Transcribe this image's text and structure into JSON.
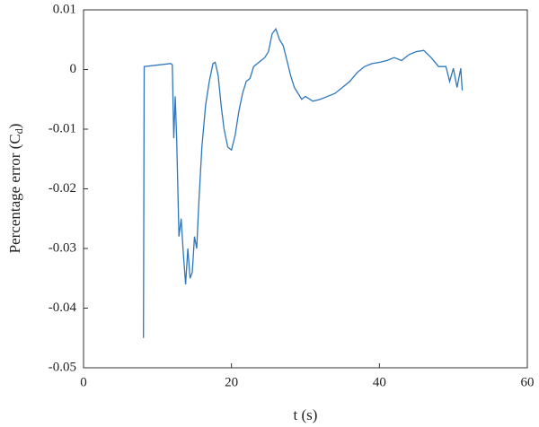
{
  "chart_data": {
    "type": "line",
    "xlabel": "t (s)",
    "ylabel": {
      "text": "Percentage error (C",
      "sub": "d",
      "end": ")"
    },
    "x": [
      8.1,
      8.2,
      11.8,
      12.0,
      12.2,
      12.4,
      12.6,
      12.9,
      13.2,
      13.5,
      13.8,
      14.1,
      14.4,
      14.7,
      15.0,
      15.3,
      15.6,
      16.0,
      16.5,
      17.0,
      17.5,
      17.8,
      18.2,
      18.6,
      19.0,
      19.5,
      20.0,
      20.5,
      21.0,
      21.5,
      22.0,
      22.5,
      23.0,
      23.5,
      24.0,
      24.5,
      25.0,
      25.5,
      26.0,
      26.5,
      27.0,
      27.5,
      28.0,
      28.5,
      29.0,
      29.5,
      30.0,
      31.0,
      32.0,
      33.0,
      34.0,
      35.0,
      36.0,
      37.0,
      38.0,
      39.0,
      40.0,
      41.0,
      42.0,
      43.0,
      44.0,
      45.0,
      46.0,
      47.0,
      48.0,
      49.0,
      49.5,
      50.0,
      50.5,
      51.0,
      51.2
    ],
    "series": [
      {
        "color": "#2f77bd",
        "values": [
          -0.045,
          0.0005,
          0.001,
          0.0008,
          -0.0115,
          -0.0045,
          -0.012,
          -0.028,
          -0.025,
          -0.031,
          -0.036,
          -0.03,
          -0.035,
          -0.034,
          -0.028,
          -0.03,
          -0.022,
          -0.013,
          -0.006,
          -0.002,
          0.001,
          0.0012,
          -0.001,
          -0.006,
          -0.01,
          -0.013,
          -0.0135,
          -0.011,
          -0.007,
          -0.004,
          -0.002,
          -0.0015,
          0.0005,
          0.001,
          0.0015,
          0.002,
          0.003,
          0.006,
          0.0068,
          0.005,
          0.004,
          0.0015,
          -0.001,
          -0.003,
          -0.004,
          -0.005,
          -0.0045,
          -0.0053,
          -0.005,
          -0.0045,
          -0.004,
          -0.003,
          -0.002,
          -0.0005,
          0.0005,
          0.001,
          0.0012,
          0.0015,
          0.002,
          0.0015,
          0.0025,
          0.003,
          0.0032,
          0.002,
          0.0005,
          0.0005,
          -0.002,
          0.0002,
          -0.003,
          0.0002,
          -0.0035
        ]
      }
    ],
    "xlim": [
      0,
      60
    ],
    "xticks": [
      0,
      20,
      40,
      60
    ],
    "ylim": [
      -0.05,
      0.01
    ],
    "yticks": [
      -0.05,
      -0.04,
      -0.03,
      -0.02,
      -0.01,
      0,
      0.01
    ]
  }
}
